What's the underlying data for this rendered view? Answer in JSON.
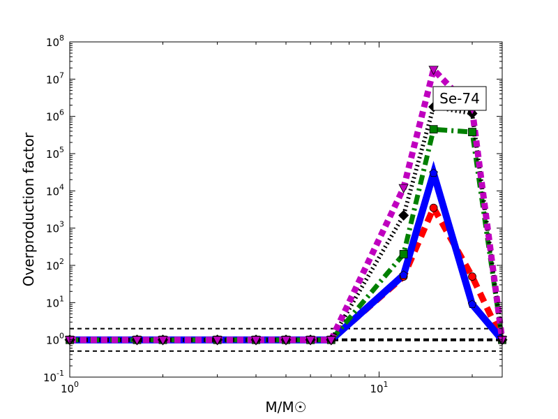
{
  "chart_data": {
    "type": "line",
    "title": "",
    "xlabel": "M/M☉",
    "ylabel": "Overproduction factor",
    "xscale": "log",
    "yscale": "log",
    "xlim": [
      1,
      25
    ],
    "ylim": [
      0.1,
      100000000
    ],
    "grid": false,
    "legend": "none",
    "annotation": "Se-74",
    "x_ticks": [
      {
        "value": 1,
        "base": "10",
        "exp": "0"
      },
      {
        "value": 10,
        "base": "10",
        "exp": "1"
      }
    ],
    "y_ticks": [
      {
        "value": 0.1,
        "base": "10",
        "exp": "-1"
      },
      {
        "value": 1,
        "base": "10",
        "exp": "0"
      },
      {
        "value": 10,
        "base": "10",
        "exp": "1"
      },
      {
        "value": 100,
        "base": "10",
        "exp": "2"
      },
      {
        "value": 1000,
        "base": "10",
        "exp": "3"
      },
      {
        "value": 10000,
        "base": "10",
        "exp": "4"
      },
      {
        "value": 100000,
        "base": "10",
        "exp": "5"
      },
      {
        "value": 1000000,
        "base": "10",
        "exp": "6"
      },
      {
        "value": 10000000,
        "base": "10",
        "exp": "7"
      },
      {
        "value": 100000000,
        "base": "10",
        "exp": "8"
      }
    ],
    "reference_lines": [
      {
        "y": 2,
        "style": "dashed",
        "color": "#000000"
      },
      {
        "y": 1,
        "style": "dashed-bold",
        "color": "#000000"
      },
      {
        "y": 0.5,
        "style": "dashed",
        "color": "#000000"
      }
    ],
    "series": [
      {
        "color": "#ff0000",
        "linestyle": "dashed",
        "marker": "circle",
        "x": [
          1,
          1.65,
          2,
          3,
          4,
          5,
          6,
          7,
          12,
          15,
          20,
          25
        ],
        "y": [
          1,
          1,
          1,
          1,
          1,
          1,
          1,
          1,
          50,
          3500,
          50,
          1
        ]
      },
      {
        "color": "#0000ff",
        "linestyle": "solid",
        "marker": "pentagon",
        "x": [
          1,
          1.65,
          2,
          3,
          4,
          5,
          6,
          7,
          12,
          15,
          20,
          25
        ],
        "y": [
          1,
          1,
          1,
          1,
          1,
          1,
          1,
          1,
          55,
          30000,
          9,
          1
        ]
      },
      {
        "color": "#008000",
        "linestyle": "dashdot",
        "marker": "square",
        "x": [
          1,
          1.65,
          2,
          3,
          4,
          5,
          6,
          7,
          12,
          15,
          20,
          25
        ],
        "y": [
          1,
          1,
          1,
          1,
          1,
          1,
          1,
          1,
          200,
          450000,
          380000,
          1
        ]
      },
      {
        "color": "#000000",
        "linestyle": "dotted",
        "marker": "diamond",
        "x": [
          1,
          1.65,
          2,
          3,
          4,
          5,
          6,
          7,
          12,
          15,
          20,
          25
        ],
        "y": [
          1,
          1,
          1,
          1,
          1,
          1,
          1,
          1,
          2200,
          1800000,
          1200000,
          1
        ]
      },
      {
        "color": "#bf00bf",
        "linestyle": "dotted",
        "marker": "triangle-down",
        "x": [
          1,
          1.65,
          2,
          3,
          4,
          5,
          6,
          7,
          12,
          15,
          20,
          25
        ],
        "y": [
          1,
          1,
          1,
          1,
          1,
          1,
          1,
          1,
          12000,
          18000000,
          1500000,
          1
        ]
      }
    ]
  }
}
